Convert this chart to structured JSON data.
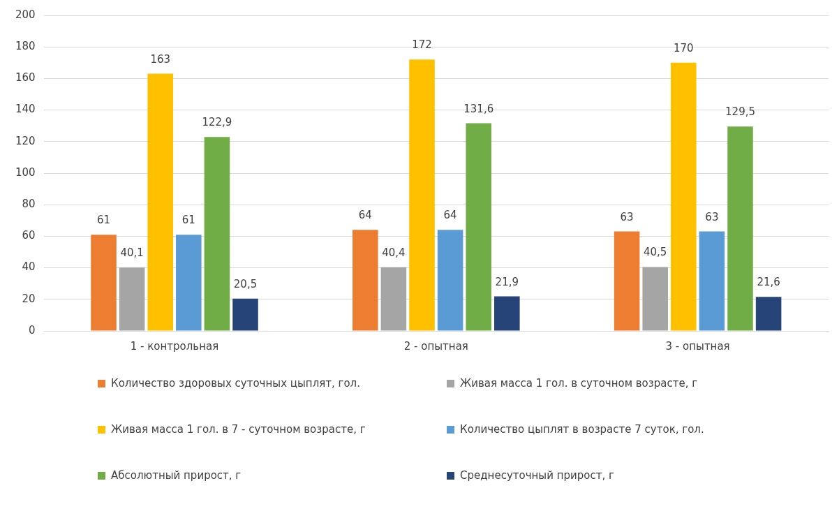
{
  "chart_data": {
    "type": "bar",
    "categories": [
      "1 - контрольная",
      "2 - опытная",
      "3 - опытная"
    ],
    "series": [
      {
        "name": "Количество здоровых суточных цыплят, гол.",
        "color": "#ed7d31",
        "values": [
          61,
          64,
          63
        ],
        "value_labels": [
          "61",
          "64",
          "63"
        ]
      },
      {
        "name": "Живая масса 1 гол. в суточном возрасте, г",
        "color": "#a5a5a5",
        "values": [
          40.1,
          40.4,
          40.5
        ],
        "value_labels": [
          "40,1",
          "40,4",
          "40,5"
        ]
      },
      {
        "name": "Живая масса 1 гол. в 7 - суточном возрасте, г",
        "color": "#ffc000",
        "values": [
          163,
          172,
          170
        ],
        "value_labels": [
          "163",
          "172",
          "170"
        ]
      },
      {
        "name": "Количество цыплят в возрасте 7 суток, гол.",
        "color": "#5b9bd5",
        "values": [
          61,
          64,
          63
        ],
        "value_labels": [
          "61",
          "64",
          "63"
        ]
      },
      {
        "name": "Абсолютный прирост, г",
        "color": "#70ad47",
        "values": [
          122.9,
          131.6,
          129.5
        ],
        "value_labels": [
          "122,9",
          "131,6",
          "129,5"
        ]
      },
      {
        "name": "Среднесуточный прирост, г",
        "color": "#264478",
        "values": [
          20.5,
          21.9,
          21.6
        ],
        "value_labels": [
          "20,5",
          "21,9",
          "21,6"
        ]
      }
    ],
    "ylim": [
      0,
      200
    ],
    "yticks": [
      0,
      20,
      40,
      60,
      80,
      100,
      120,
      140,
      160,
      180,
      200
    ],
    "grid": "y",
    "legend": "bottom"
  }
}
